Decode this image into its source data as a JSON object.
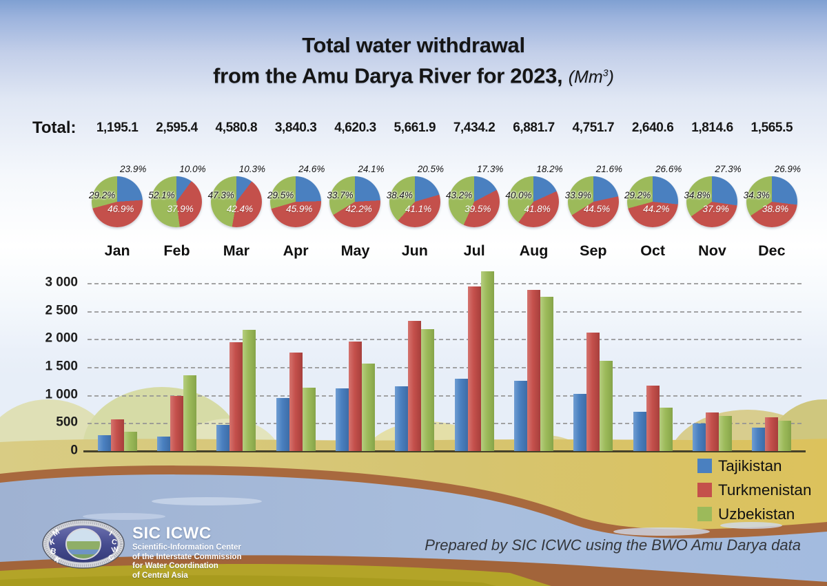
{
  "title": {
    "line1": "Total water withdrawal",
    "line2": "from the Amu Darya River for 2023,",
    "unit_prefix": "(Mm",
    "unit_sup": "3",
    "unit_suffix": ")"
  },
  "totals_label": "Total:",
  "legend": [
    {
      "label": "Tajikistan",
      "color": "#4a80c0"
    },
    {
      "label": "Turkmenistan",
      "color": "#c4504b"
    },
    {
      "label": "Uzbekistan",
      "color": "#9cba5a"
    }
  ],
  "footer": {
    "logo_left": "МКВК",
    "logo_right": "ICWC",
    "org_abbr": "SIC ICWC",
    "org_lines": [
      "Scientific-Information Center",
      "of the Interstate Commission",
      "for Water Coordination",
      "of Central Asia"
    ],
    "credit": "Prepared by SIC ICWC using the BWO Amu Darya data"
  },
  "chart_data": {
    "type": "bar",
    "title": "Total water withdrawal from the Amu Darya River for 2023 (Mm³)",
    "categories": [
      "Jan",
      "Feb",
      "Mar",
      "Apr",
      "May",
      "Jun",
      "Jul",
      "Aug",
      "Sep",
      "Oct",
      "Nov",
      "Dec"
    ],
    "totals_display": [
      "1,195.1",
      "2,595.4",
      "4,580.8",
      "3,840.3",
      "4,620.3",
      "5,661.9",
      "7,434.2",
      "6,881.7",
      "4,751.7",
      "2,640.6",
      "1,814.6",
      "1,565.5"
    ],
    "totals": [
      1195.1,
      2595.4,
      4580.8,
      3840.3,
      4620.3,
      5661.9,
      7434.2,
      6881.7,
      4751.7,
      2640.6,
      1814.6,
      1565.5
    ],
    "series": [
      {
        "name": "Tajikistan",
        "color": "#4a80c0",
        "pct": [
          23.9,
          10.0,
          10.3,
          24.6,
          24.1,
          20.5,
          17.3,
          18.2,
          21.6,
          26.6,
          27.3,
          26.9
        ],
        "values": [
          285.6,
          259.5,
          471.8,
          944.7,
          1113.5,
          1160.7,
          1286.1,
          1252.5,
          1026.4,
          702.4,
          495.4,
          421.1
        ]
      },
      {
        "name": "Turkmenistan",
        "color": "#c4504b",
        "pct": [
          46.9,
          37.9,
          42.4,
          45.9,
          42.2,
          41.1,
          39.5,
          41.8,
          44.5,
          44.2,
          37.9,
          38.8
        ],
        "values": [
          560.5,
          983.7,
          1942.3,
          1762.7,
          1949.8,
          2327.0,
          2936.5,
          2876.6,
          2114.5,
          1167.1,
          687.7,
          607.4
        ]
      },
      {
        "name": "Uzbekistan",
        "color": "#9cba5a",
        "pct": [
          29.2,
          52.1,
          47.3,
          29.5,
          33.7,
          38.4,
          43.2,
          40.0,
          33.9,
          29.2,
          34.8,
          34.3
        ],
        "values": [
          349.0,
          1352.2,
          2166.7,
          1132.9,
          1557.0,
          2174.2,
          3211.6,
          2752.7,
          1610.8,
          771.1,
          631.5,
          537.0
        ]
      }
    ],
    "pies": {
      "slice_order": [
        "Tajikistan",
        "Turkmenistan",
        "Uzbekistan"
      ],
      "start_angle_deg": 0,
      "direction": "clockwise"
    },
    "ylim": [
      0,
      3000
    ],
    "ytick_step": 500,
    "yticks": [
      3000,
      2500,
      2000,
      1500,
      1000,
      500,
      0
    ],
    "ytick_labels": [
      "3 000",
      "2 500",
      "2 000",
      "1 500",
      "1 000",
      "500",
      "0"
    ],
    "grid": true,
    "legend_position": "bottom-right"
  }
}
